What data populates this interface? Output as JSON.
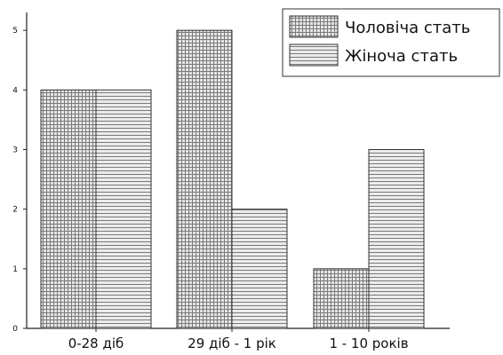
{
  "chart_data": {
    "type": "bar",
    "categories": [
      "0-28 діб",
      "29 діб - 1 рік",
      "1 - 10 років"
    ],
    "series": [
      {
        "name": "Чоловіча стать",
        "values": [
          4,
          5,
          1
        ],
        "pattern": "grid"
      },
      {
        "name": "Жіноча стать",
        "values": [
          4,
          2,
          3
        ],
        "pattern": "horizontal-lines"
      }
    ],
    "y_ticks": [
      0,
      1,
      2,
      3,
      4,
      5
    ],
    "ylim": [
      0,
      5.3
    ],
    "grid": false,
    "legend_position": "top-right",
    "colors": {
      "bar_fill": "#e6e6e6",
      "pattern_line": "#7a7a7a",
      "axis": "#222222",
      "text": "#111111"
    }
  }
}
